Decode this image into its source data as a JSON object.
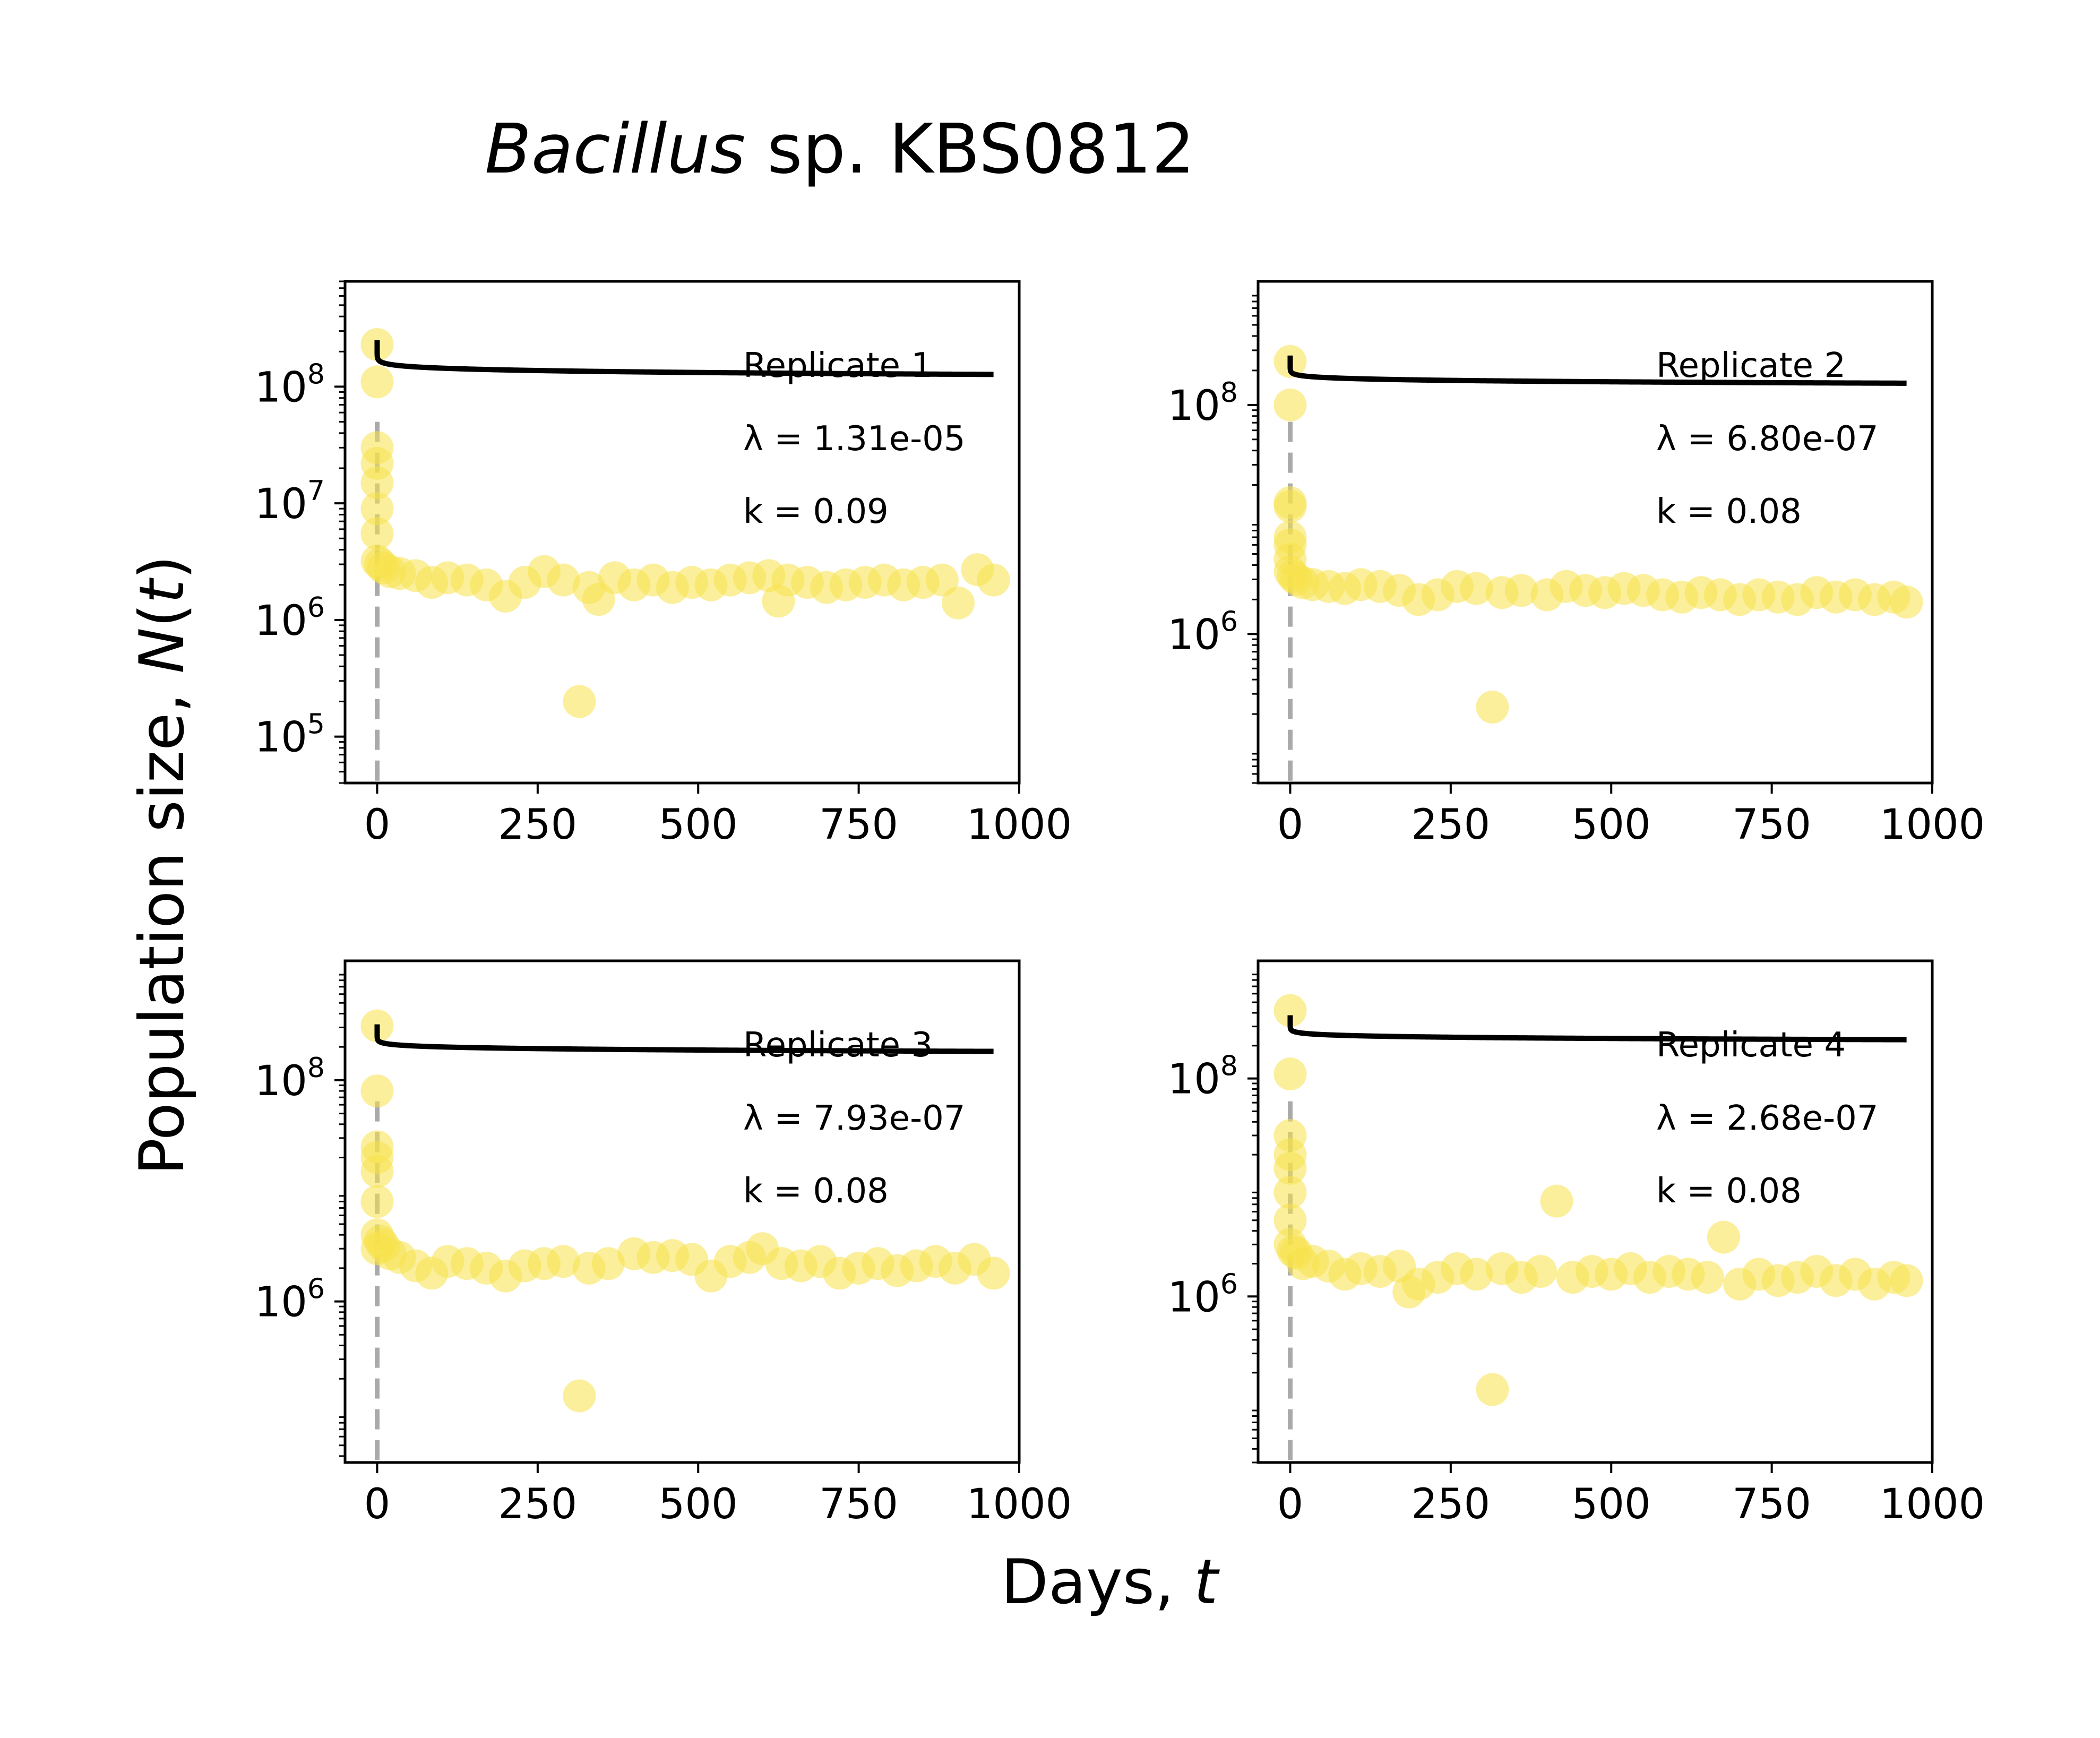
{
  "figure": {
    "title_italic": "Bacillus",
    "title_rest": " sp. KBS0812",
    "ylabel_text": "Population size, ",
    "ylabel_var": "N",
    "ylabel_arg": "t",
    "xlabel_text": "Days, ",
    "xlabel_var": "t"
  },
  "colors": {
    "points": "#f7e14a",
    "fit": "#000000",
    "vline": "#aaaaaa"
  },
  "chart_data": [
    {
      "type": "scatter",
      "annotation": "Replicate 1",
      "lambda_label": "λ = 1.31e-05",
      "k_label": "k = 0.09",
      "xlim": [
        -50,
        1000
      ],
      "xticks": [
        0,
        250,
        500,
        750,
        1000
      ],
      "yscale": "log",
      "ylim": [
        40000,
        800000000
      ],
      "yticks": [
        100000,
        1000000,
        10000000,
        100000000
      ],
      "yticklabels": [
        [
          "10",
          "5"
        ],
        [
          "10",
          "6"
        ],
        [
          "10",
          "7"
        ],
        [
          "10",
          "8"
        ]
      ],
      "vline_x": 0,
      "fit": {
        "N0": 250000000,
        "lambda": 1.31e-05,
        "k": 0.09
      },
      "points": {
        "x": [
          0,
          0,
          0,
          0,
          0,
          0,
          0,
          0,
          5,
          10,
          20,
          35,
          60,
          85,
          110,
          140,
          170,
          200,
          230,
          260,
          290,
          315,
          330,
          345,
          370,
          400,
          430,
          460,
          490,
          520,
          550,
          580,
          610,
          625,
          640,
          670,
          700,
          730,
          760,
          790,
          820,
          850,
          880,
          905,
          935,
          960
        ],
        "y": [
          230000000,
          110000000,
          30000000,
          22000000,
          15000000,
          9000000,
          5500000,
          3200000,
          3000000,
          2800000,
          2600000,
          2500000,
          2400000,
          2100000,
          2300000,
          2200000,
          2000000,
          1600000,
          2100000,
          2600000,
          2200000,
          200000,
          1900000,
          1500000,
          2300000,
          2000000,
          2200000,
          1900000,
          2100000,
          2000000,
          2200000,
          2300000,
          2400000,
          1450000,
          2200000,
          2100000,
          1900000,
          2000000,
          2100000,
          2200000,
          2000000,
          2100000,
          2200000,
          1400000,
          2700000,
          2200000
        ]
      }
    },
    {
      "type": "scatter",
      "annotation": "Replicate 2",
      "lambda_label": "λ = 6.80e-07",
      "k_label": "k = 0.08",
      "xlim": [
        -50,
        1000
      ],
      "xticks": [
        0,
        250,
        500,
        750,
        1000
      ],
      "yscale": "log",
      "ylim": [
        50000,
        1200000000
      ],
      "yticks": [
        1000000,
        100000000
      ],
      "yticklabels": [
        [
          "10",
          "6"
        ],
        [
          "10",
          "8"
        ]
      ],
      "vline_x": 0,
      "fit": {
        "N0": 270000000,
        "lambda": 6.8e-07,
        "k": 0.08
      },
      "points": {
        "x": [
          0,
          0,
          0,
          0,
          0,
          0,
          0,
          0,
          5,
          10,
          20,
          35,
          60,
          85,
          110,
          140,
          170,
          200,
          230,
          260,
          290,
          315,
          330,
          360,
          400,
          430,
          460,
          490,
          520,
          550,
          580,
          610,
          640,
          670,
          700,
          730,
          760,
          790,
          820,
          850,
          880,
          910,
          940,
          960
        ],
        "y": [
          240000000,
          100000000,
          14000000,
          13000000,
          7000000,
          6000000,
          4500000,
          3500000,
          3200000,
          3000000,
          2800000,
          2700000,
          2600000,
          2500000,
          2700000,
          2600000,
          2400000,
          2000000,
          2200000,
          2600000,
          2500000,
          230000,
          2300000,
          2400000,
          2200000,
          2600000,
          2400000,
          2300000,
          2500000,
          2400000,
          2200000,
          2100000,
          2300000,
          2200000,
          2000000,
          2200000,
          2100000,
          2000000,
          2300000,
          2100000,
          2200000,
          2000000,
          2100000,
          1900000
        ]
      }
    },
    {
      "type": "scatter",
      "annotation": "Replicate 3",
      "lambda_label": "λ = 7.93e-07",
      "k_label": "k = 0.08",
      "xlim": [
        -50,
        1000
      ],
      "xticks": [
        0,
        250,
        500,
        750,
        1000
      ],
      "yscale": "log",
      "ylim": [
        35000,
        1200000000
      ],
      "yticks": [
        1000000,
        100000000
      ],
      "yticklabels": [
        [
          "10",
          "6"
        ],
        [
          "10",
          "8"
        ]
      ],
      "vline_x": 0,
      "fit": {
        "N0": 320000000,
        "lambda": 7.93e-07,
        "k": 0.08
      },
      "points": {
        "x": [
          0,
          0,
          0,
          0,
          0,
          0,
          0,
          0,
          5,
          10,
          20,
          35,
          60,
          85,
          110,
          140,
          170,
          200,
          230,
          260,
          290,
          315,
          330,
          360,
          400,
          430,
          460,
          490,
          520,
          550,
          580,
          600,
          630,
          660,
          690,
          720,
          750,
          780,
          810,
          840,
          870,
          900,
          930,
          960
        ],
        "y": [
          310000000,
          80000000,
          25000000,
          20000000,
          15000000,
          8000000,
          4000000,
          3000000,
          3500000,
          3200000,
          2700000,
          2500000,
          2100000,
          1800000,
          2300000,
          2200000,
          2000000,
          1700000,
          2100000,
          2200000,
          2300000,
          140000,
          2000000,
          2200000,
          2700000,
          2500000,
          2600000,
          2400000,
          1700000,
          2300000,
          2500000,
          3000000,
          2200000,
          2100000,
          2300000,
          1800000,
          2000000,
          2200000,
          1900000,
          2100000,
          2300000,
          2000000,
          2400000,
          1800000
        ]
      }
    },
    {
      "type": "scatter",
      "annotation": "Replicate 4",
      "lambda_label": "λ = 2.68e-07",
      "k_label": "k = 0.08",
      "xlim": [
        -50,
        1000
      ],
      "xticks": [
        0,
        250,
        500,
        750,
        1000
      ],
      "yscale": "log",
      "ylim": [
        30000,
        1200000000
      ],
      "yticks": [
        1000000,
        100000000
      ],
      "yticklabels": [
        [
          "10",
          "6"
        ],
        [
          "10",
          "8"
        ]
      ],
      "vline_x": 0,
      "fit": {
        "N0": 380000000,
        "lambda": 2.68e-07,
        "k": 0.08
      },
      "points": {
        "x": [
          0,
          0,
          0,
          0,
          0,
          0,
          0,
          0,
          5,
          10,
          20,
          35,
          60,
          85,
          110,
          140,
          170,
          185,
          200,
          230,
          260,
          290,
          315,
          330,
          360,
          390,
          415,
          440,
          470,
          500,
          530,
          560,
          590,
          620,
          650,
          675,
          700,
          730,
          760,
          790,
          820,
          850,
          880,
          910,
          940,
          960
        ],
        "y": [
          420000000,
          110000000,
          30000000,
          20000000,
          15000000,
          9000000,
          5000000,
          3000000,
          2600000,
          2500000,
          2000000,
          2100000,
          1900000,
          1600000,
          1800000,
          1700000,
          1900000,
          1100000,
          1300000,
          1500000,
          1800000,
          1600000,
          140000,
          1800000,
          1500000,
          1700000,
          7500000,
          1500000,
          1700000,
          1600000,
          1800000,
          1500000,
          1700000,
          1600000,
          1500000,
          3500000,
          1300000,
          1600000,
          1400000,
          1500000,
          1700000,
          1400000,
          1600000,
          1300000,
          1500000,
          1400000
        ]
      }
    }
  ]
}
